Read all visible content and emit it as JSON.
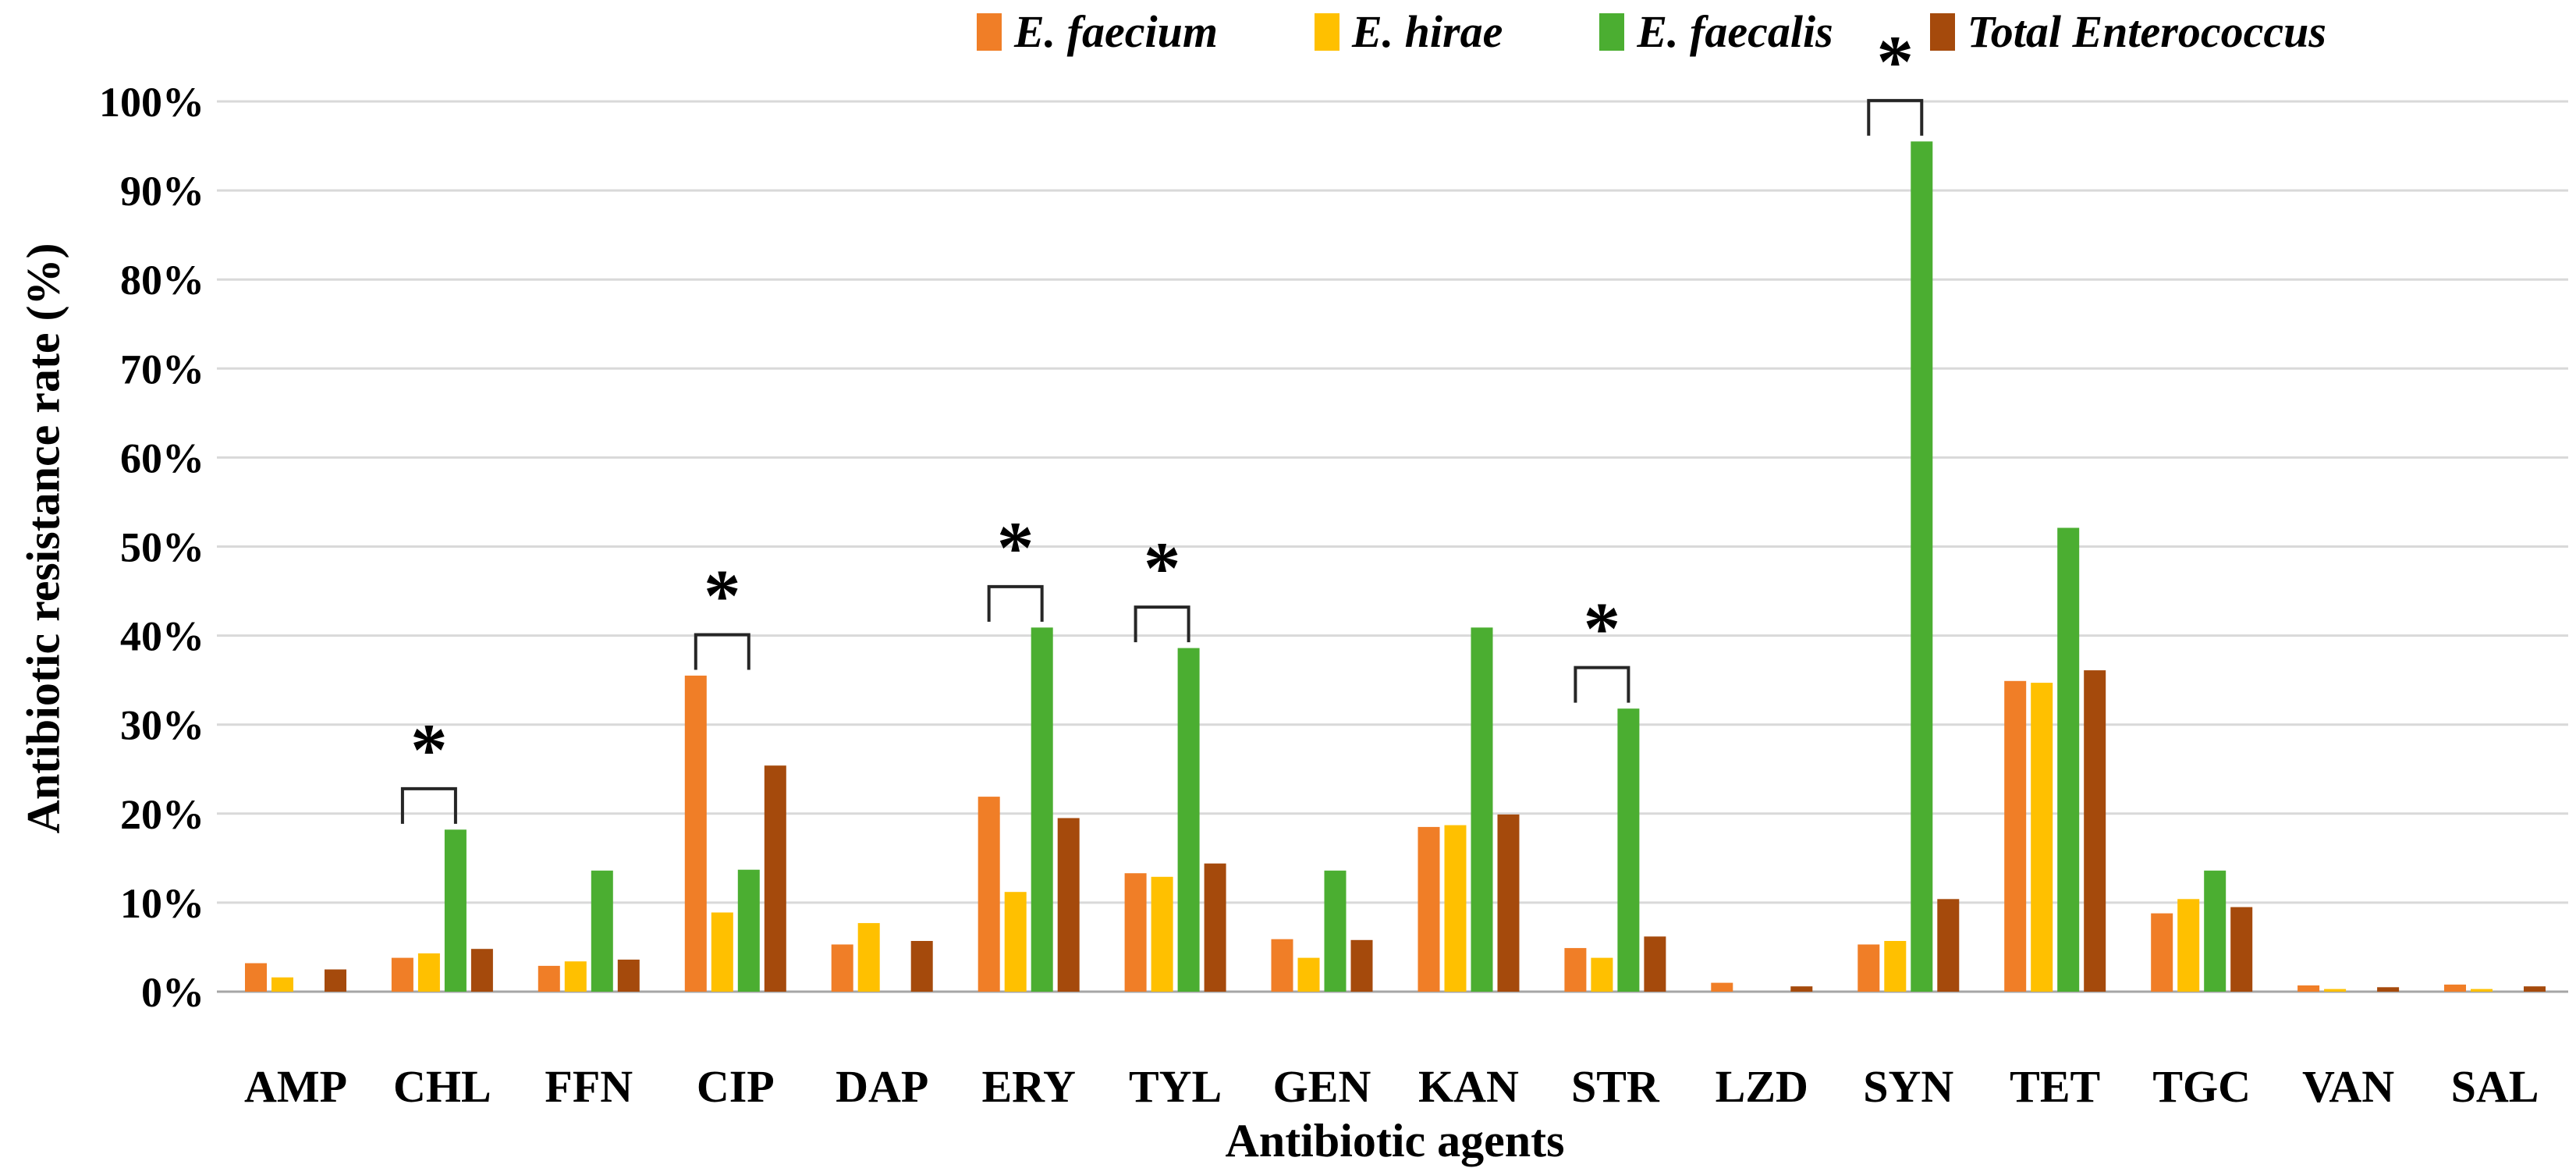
{
  "legend": {
    "items": [
      {
        "label": "E. faecium",
        "color": "#F07E27"
      },
      {
        "label": "E. hirae",
        "color": "#FFC000"
      },
      {
        "label": "E. faecalis",
        "color": "#4BAE31"
      },
      {
        "label": "Total Enterococcus",
        "color": "#A54A0C"
      }
    ]
  },
  "axes": {
    "y_title": "Antibiotic resistance rate (%)",
    "x_title": "Antibiotic agents"
  },
  "chart_data": {
    "type": "bar",
    "title": "",
    "xlabel": "Antibiotic agents",
    "ylabel": "Antibiotic resistance rate (%)",
    "ylim": [
      0,
      100
    ],
    "y_tick_step": 10,
    "y_tick_suffix": "%",
    "grid": true,
    "legend_position": "top",
    "gridline_color": "#D9D9D9",
    "baseline_color": "#A6A6A6",
    "categories": [
      "AMP",
      "CHL",
      "FFN",
      "CIP",
      "DAP",
      "ERY",
      "TYL",
      "GEN",
      "KAN",
      "STR",
      "LZD",
      "SYN",
      "TET",
      "TGC",
      "VAN",
      "SAL"
    ],
    "series": [
      {
        "name": "E. faecium",
        "color": "#F07E27",
        "values": [
          3.2,
          3.8,
          2.9,
          35.5,
          5.3,
          21.9,
          13.3,
          5.9,
          18.5,
          4.9,
          1.0,
          5.3,
          34.9,
          8.8,
          0.7,
          0.8
        ]
      },
      {
        "name": "E. hirae",
        "color": "#FFC000",
        "values": [
          1.6,
          4.3,
          3.4,
          8.9,
          7.7,
          11.2,
          12.9,
          3.8,
          18.7,
          3.8,
          0,
          5.7,
          34.7,
          10.4,
          0.3,
          0.3
        ]
      },
      {
        "name": "E. faecalis",
        "color": "#4BAE31",
        "values": [
          0,
          18.2,
          13.6,
          13.7,
          0,
          40.9,
          38.6,
          13.6,
          40.9,
          31.8,
          0,
          95.5,
          52.1,
          13.6,
          0,
          0
        ]
      },
      {
        "name": "Total Enterococcus",
        "color": "#A54A0C",
        "values": [
          2.5,
          4.8,
          3.6,
          25.4,
          5.7,
          19.5,
          14.4,
          5.8,
          19.9,
          6.2,
          0.6,
          10.4,
          36.1,
          9.5,
          0.5,
          0.6
        ]
      }
    ],
    "significance_marks": {
      "symbol": "*",
      "categories": [
        "CHL",
        "CIP",
        "ERY",
        "TYL",
        "STR",
        "SYN"
      ],
      "compares": [
        "E. faecium",
        "E. faecalis"
      ]
    }
  }
}
